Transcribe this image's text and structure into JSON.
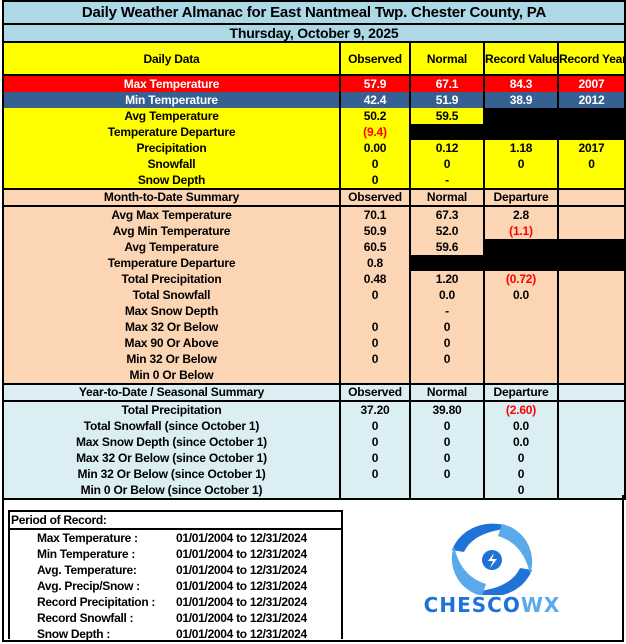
{
  "title": "Daily Weather Almanac for East Nantmeal Twp.  Chester County, PA",
  "date": "Thursday, October 9, 2025",
  "daily": {
    "headers": [
      "Daily Data",
      "Observed",
      "Normal",
      "Record Value",
      "Record Year"
    ],
    "rows": [
      {
        "label": "Max Temperature",
        "observed": "57.9",
        "normal": "67.1",
        "record_value": "84.3",
        "record_year": "2007"
      },
      {
        "label": "Min Temperature",
        "observed": "42.4",
        "normal": "51.9",
        "record_value": "38.9",
        "record_year": "2012"
      },
      {
        "label": "Avg Temperature",
        "observed": "50.2",
        "normal": "59.5",
        "record_value": "",
        "record_year": ""
      },
      {
        "label": "Temperature Departure",
        "observed": "(9.4)",
        "normal": "",
        "record_value": "",
        "record_year": ""
      },
      {
        "label": "Precipitation",
        "observed": "0.00",
        "normal": "0.12",
        "record_value": "1.18",
        "record_year": "2017"
      },
      {
        "label": "Snowfall",
        "observed": "0",
        "normal": "0",
        "record_value": "0",
        "record_year": "0"
      },
      {
        "label": "Snow Depth",
        "observed": "0",
        "normal": "-",
        "record_value": "",
        "record_year": ""
      }
    ]
  },
  "month_to_date": {
    "headers": [
      "Month-to-Date Summary",
      "Observed",
      "Normal",
      "Departure",
      ""
    ],
    "rows": [
      {
        "label": "Avg Max Temperature",
        "observed": "70.1",
        "normal": "67.3",
        "departure": "2.8"
      },
      {
        "label": "Avg Min Temperature",
        "observed": "50.9",
        "normal": "52.0",
        "departure": "(1.1)"
      },
      {
        "label": "Avg Temperature",
        "observed": "60.5",
        "normal": "59.6",
        "departure": ""
      },
      {
        "label": "Temperature Departure",
        "observed": "0.8",
        "normal": "",
        "departure": ""
      },
      {
        "label": "Total Precipitation",
        "observed": "0.48",
        "normal": "1.20",
        "departure": "(0.72)"
      },
      {
        "label": "Total Snowfall",
        "observed": "0",
        "normal": "0.0",
        "departure": "0.0"
      },
      {
        "label": "Max Snow Depth",
        "observed": "",
        "normal": "-",
        "departure": ""
      },
      {
        "label": "Max 32 Or Below",
        "observed": "0",
        "normal": "0",
        "departure": ""
      },
      {
        "label": "Max 90 Or Above",
        "observed": "0",
        "normal": "0",
        "departure": ""
      },
      {
        "label": "Min 32 Or Below",
        "observed": "0",
        "normal": "0",
        "departure": ""
      },
      {
        "label": "Min 0 Or Below",
        "observed": "",
        "normal": "",
        "departure": ""
      }
    ]
  },
  "year_to_date": {
    "headers": [
      "Year-to-Date / Seasonal Summary",
      "Observed",
      "Normal",
      "Departure",
      ""
    ],
    "rows": [
      {
        "label": "Total Precipitation",
        "observed": "37.20",
        "normal": "39.80",
        "departure": "(2.60)"
      },
      {
        "label": "Total Snowfall (since October 1)",
        "observed": "0",
        "normal": "0",
        "departure": "0.0"
      },
      {
        "label": "Max Snow Depth (since October 1)",
        "observed": "0",
        "normal": "0",
        "departure": "0.0"
      },
      {
        "label": "Max 32 Or Below (since October 1)",
        "observed": "0",
        "normal": "0",
        "departure": "0"
      },
      {
        "label": "Min 32 Or Below (since October 1)",
        "observed": "0",
        "normal": "0",
        "departure": "0"
      },
      {
        "label": "Min 0 Or Below (since October 1)",
        "observed": "",
        "normal": "",
        "departure": "0"
      }
    ]
  },
  "period_of_record": {
    "title": "Period of Record:",
    "rows": [
      {
        "label": "Max Temperature :",
        "range": "01/01/2004 to 12/31/2024"
      },
      {
        "label": "Min Temperature :",
        "range": "01/01/2004 to 12/31/2024"
      },
      {
        "label": "Avg. Temperature:",
        "range": "01/01/2004 to 12/31/2024"
      },
      {
        "label": "Avg. Precip/Snow :",
        "range": "01/01/2004 to 12/31/2024"
      },
      {
        "label": "Record Precipitation :",
        "range": "01/01/2004 to 12/31/2024"
      },
      {
        "label": "Record Snowfall :",
        "range": "01/01/2004 to 12/31/2024"
      },
      {
        "label": "Snow Depth :",
        "range": "01/01/2004 to 12/31/2024"
      }
    ]
  },
  "logo": {
    "text_main": "CHESCO",
    "text_accent": "WX"
  },
  "colors": {
    "title_bg": "#add8e6",
    "daily_bg": "#ffff00",
    "max_row": "#ff0000",
    "min_row": "#366092",
    "mtd_bg": "#fcd5b4",
    "ytd_bg": "#daeef3",
    "negative": "#ff0000",
    "logo_blue": "#1f73d6"
  }
}
